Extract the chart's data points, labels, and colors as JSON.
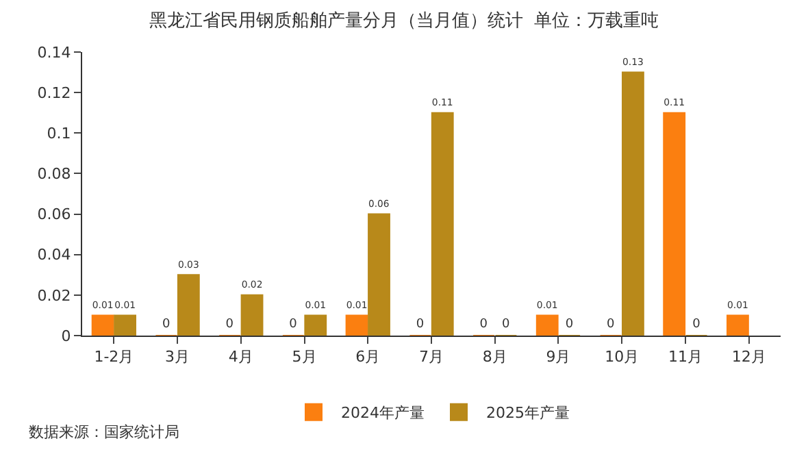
{
  "chart_data": {
    "type": "bar",
    "title": "黑龙江省民用钢质船舶产量分月（当月值）统计  单位：万载重吨",
    "categories": [
      "1-2月",
      "3月",
      "4月",
      "5月",
      "6月",
      "7月",
      "8月",
      "9月",
      "10月",
      "11月",
      "12月"
    ],
    "series": [
      {
        "name": "2024年产量",
        "color": "#fb7f10",
        "values": [
          0.01,
          0,
          0,
          0,
          0.01,
          0,
          0,
          0.01,
          0,
          0.11,
          0.01
        ]
      },
      {
        "name": "2025年产量",
        "color": "#b8891a",
        "values": [
          0.01,
          0.03,
          0.02,
          0.01,
          0.06,
          0.11,
          0,
          0,
          0.13,
          0,
          null
        ]
      }
    ],
    "ylim": [
      0,
      0.14
    ],
    "yticks": [
      0,
      0.02,
      0.04,
      0.06,
      0.08,
      0.1,
      0.12,
      0.14
    ],
    "data_labels": true,
    "legend": "bottom",
    "annotations": [
      "数据来源：国家统计局"
    ]
  }
}
